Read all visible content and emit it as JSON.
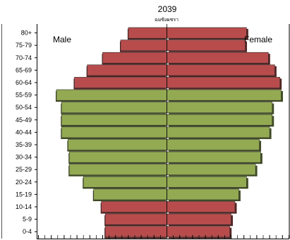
{
  "chart_data": {
    "type": "bar",
    "orientation": "horizontal",
    "title": "2039",
    "subtitle": "ฉมซิงผชรา",
    "categories": [
      "80+",
      "75-79",
      "70-74",
      "65-69",
      "60-64",
      "55-59",
      "50-54",
      "45-49",
      "40-44",
      "35-39",
      "30-34",
      "25-29",
      "20-24",
      "15-19",
      "10-14",
      "5-9",
      "0-4"
    ],
    "series": [
      {
        "name": "Male",
        "values": [
          3.0,
          3.6,
          5.0,
          6.2,
          7.2,
          8.6,
          8.2,
          8.2,
          8.2,
          7.7,
          7.6,
          7.6,
          6.5,
          5.7,
          5.1,
          4.8,
          4.8
        ],
        "colors": [
          "#b84c4c",
          "#b84c4c",
          "#b84c4c",
          "#b84c4c",
          "#b84c4c",
          "#93aa52",
          "#93aa52",
          "#93aa52",
          "#93aa52",
          "#93aa52",
          "#93aa52",
          "#93aa52",
          "#93aa52",
          "#93aa52",
          "#b84c4c",
          "#b84c4c",
          "#b84c4c"
        ]
      },
      {
        "name": "Female",
        "values": [
          6.2,
          6.1,
          7.9,
          8.4,
          8.8,
          8.9,
          8.2,
          8.2,
          8.0,
          7.2,
          7.3,
          6.9,
          6.2,
          5.6,
          5.3,
          5.0,
          4.9
        ],
        "colors": [
          "#b84c4c",
          "#b84c4c",
          "#b84c4c",
          "#b84c4c",
          "#b84c4c",
          "#93aa52",
          "#93aa52",
          "#93aa52",
          "#93aa52",
          "#93aa52",
          "#93aa52",
          "#93aa52",
          "#93aa52",
          "#93aa52",
          "#b84c4c",
          "#b84c4c",
          "#b84c4c"
        ]
      }
    ],
    "xlim": [
      -10,
      10
    ],
    "grid": false,
    "legend": "none",
    "side_labels": {
      "left": "Male",
      "right": "Female"
    }
  }
}
